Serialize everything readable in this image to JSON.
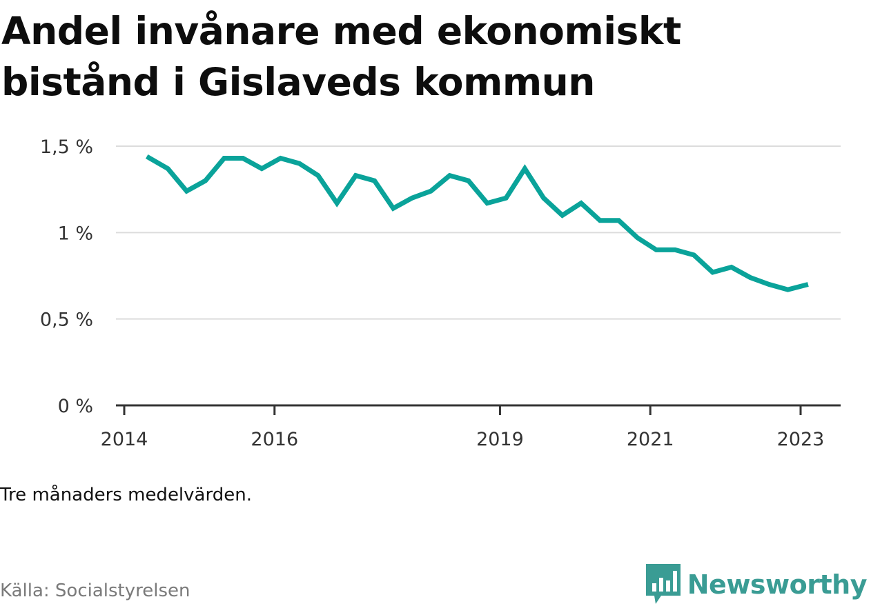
{
  "title": "Andel invånare med ekonomiskt bistånd i Gislaveds kommun",
  "note": "Tre månaders medelvärden.",
  "source": "Källa: Socialstyrelsen",
  "brand": {
    "name": "Newsworthy",
    "icon": "newsworthy-bar-chart-icon",
    "color": "#3a9c94"
  },
  "chart_data": {
    "type": "line",
    "title": "Andel invånare med ekonomiskt bistånd i Gislaveds kommun",
    "xlabel": "",
    "ylabel": "",
    "line_color": "#0aa39a",
    "grid": true,
    "xlim": [
      2014,
      2023.25
    ],
    "ylim": [
      0,
      1.5
    ],
    "x_ticks": [
      {
        "value": 2014,
        "label": "2014"
      },
      {
        "value": 2016,
        "label": "2016"
      },
      {
        "value": 2019,
        "label": "2019"
      },
      {
        "value": 2021,
        "label": "2021"
      },
      {
        "value": 2023,
        "label": "2023"
      }
    ],
    "y_ticks": [
      {
        "value": 0,
        "label": "0 %"
      },
      {
        "value": 0.5,
        "label": "0,5 %"
      },
      {
        "value": 1,
        "label": "1 %"
      },
      {
        "value": 1.5,
        "label": "1,5 %"
      }
    ],
    "series": [
      {
        "name": "",
        "x": [
          2014.3,
          2014.58,
          2014.83,
          2015.08,
          2015.33,
          2015.58,
          2015.83,
          2016.08,
          2016.33,
          2016.58,
          2016.83,
          2017.08,
          2017.33,
          2017.58,
          2017.83,
          2018.08,
          2018.33,
          2018.58,
          2018.83,
          2019.08,
          2019.33,
          2019.58,
          2019.83,
          2020.08,
          2020.33,
          2020.58,
          2020.83,
          2021.08,
          2021.33,
          2021.58,
          2021.83,
          2022.08,
          2022.33,
          2022.58,
          2022.83,
          2023.1
        ],
        "y": [
          1.44,
          1.37,
          1.24,
          1.3,
          1.43,
          1.43,
          1.37,
          1.43,
          1.4,
          1.33,
          1.17,
          1.33,
          1.3,
          1.14,
          1.2,
          1.24,
          1.33,
          1.3,
          1.17,
          1.2,
          1.37,
          1.2,
          1.1,
          1.17,
          1.07,
          1.07,
          0.97,
          0.9,
          0.9,
          0.87,
          0.77,
          0.8,
          0.74,
          0.7,
          0.67,
          0.7
        ]
      }
    ]
  }
}
